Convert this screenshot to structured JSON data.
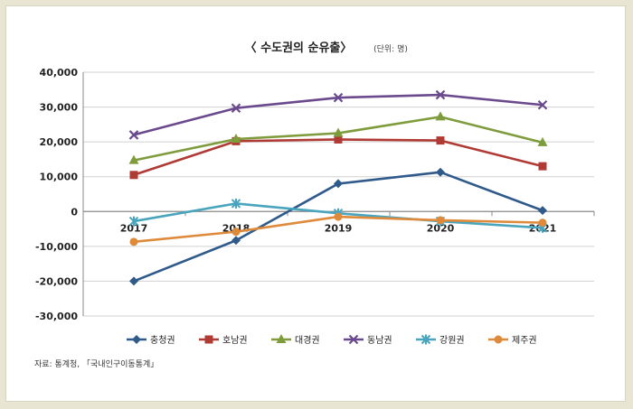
{
  "chart_data": {
    "type": "line",
    "title": "〈 수도권의 순유출〉",
    "unit": "(단위: 명)",
    "x": [
      "2017",
      "2018",
      "2019",
      "2020",
      "2021"
    ],
    "ylim": [
      -30000,
      40000
    ],
    "yticks": [
      40000,
      30000,
      20000,
      10000,
      0,
      -10000,
      -20000,
      -30000
    ],
    "ytick_labels": [
      "40,000",
      "30,000",
      "20,000",
      "10,000",
      "0",
      "-10,000",
      "-20,000",
      "-30,000"
    ],
    "grid": true,
    "legend": "bottom",
    "series": [
      {
        "name": "충청권",
        "color": "#2f5a8a",
        "marker": "diamond",
        "values": [
          -20000,
          -8300,
          8000,
          11300,
          300
        ]
      },
      {
        "name": "호남권",
        "color": "#b03a34",
        "marker": "square",
        "values": [
          10500,
          20200,
          20700,
          20400,
          13000
        ]
      },
      {
        "name": "대경권",
        "color": "#7f9c3d",
        "marker": "triangle",
        "values": [
          14700,
          20800,
          22500,
          27200,
          19800
        ]
      },
      {
        "name": "동남권",
        "color": "#6a4a8c",
        "marker": "x",
        "values": [
          22000,
          29700,
          32700,
          33500,
          30600
        ]
      },
      {
        "name": "강원권",
        "color": "#49a4bd",
        "marker": "star",
        "values": [
          -2800,
          2300,
          -500,
          -2800,
          -4700
        ]
      },
      {
        "name": "제주권",
        "color": "#de8a3a",
        "marker": "circle",
        "values": [
          -8700,
          -5800,
          -1500,
          -2500,
          -3200
        ]
      }
    ],
    "source": "자료: 통계청, 「국내인구이동통계」"
  }
}
